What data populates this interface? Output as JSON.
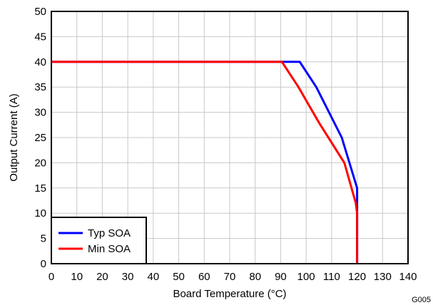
{
  "chart_data": {
    "type": "line",
    "xlabel": "Board Temperature (°C)",
    "ylabel": "Output Current (A)",
    "xlim": [
      0,
      140
    ],
    "ylim": [
      0,
      50
    ],
    "xticks": [
      0,
      10,
      20,
      30,
      40,
      50,
      60,
      70,
      80,
      90,
      100,
      110,
      120,
      130,
      140
    ],
    "yticks": [
      0,
      5,
      10,
      15,
      20,
      25,
      30,
      35,
      40,
      45,
      50
    ],
    "grid": true,
    "legend_position": "bottom-left",
    "series": [
      {
        "name": "Typ SOA",
        "color": "#0000ff",
        "x": [
          0,
          97.5,
          104,
          114,
          120,
          120
        ],
        "y": [
          40,
          40,
          35,
          25,
          15,
          0
        ]
      },
      {
        "name": "Min SOA",
        "color": "#ff0000",
        "x": [
          0,
          90.5,
          97,
          105,
          115,
          119.5,
          120,
          120
        ],
        "y": [
          40,
          40,
          35,
          28,
          20,
          12,
          10,
          0
        ]
      }
    ],
    "figure_id": "G005"
  }
}
